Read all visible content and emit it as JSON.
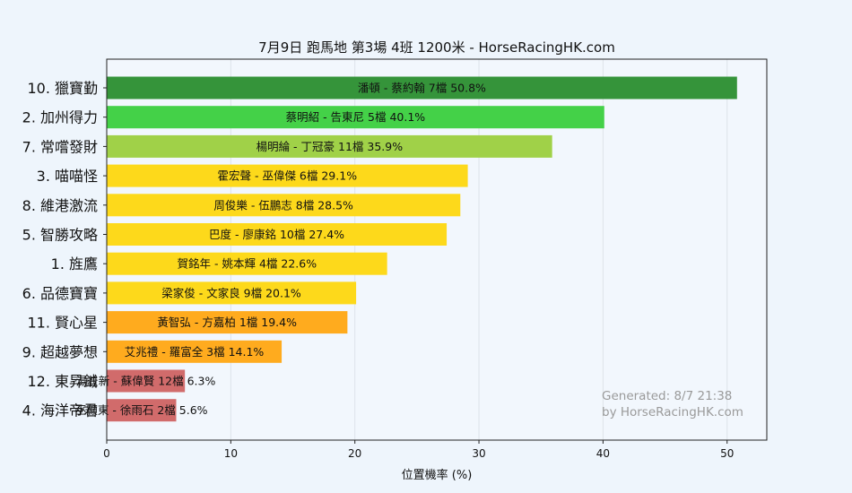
{
  "chart_data": {
    "type": "bar",
    "orientation": "horizontal",
    "title": "7月9日  跑馬地  第3場  4班  1200米 - HorseRacingHK.com",
    "xlabel": "位置機率 (%)",
    "ylabel": "",
    "xlim": [
      0,
      53.2
    ],
    "xticks": [
      0,
      10,
      20,
      30,
      40,
      50
    ],
    "grid": "vertical",
    "categories": [
      "10. 獵寶勤",
      "2. 加州得力",
      "7. 常嚐發財",
      "3. 喵喵怪",
      "8. 維港激流",
      "5. 智勝攻略",
      "1. 旌鷹",
      "6. 品德寶寶",
      "11. 賢心星",
      "9. 超越夢想",
      "12. 東昇鉞",
      "4. 海洋帝君"
    ],
    "values": [
      50.8,
      40.1,
      35.9,
      29.1,
      28.5,
      27.4,
      22.6,
      20.1,
      19.4,
      14.1,
      6.3,
      5.6
    ],
    "bar_labels": [
      "潘頓 - 蔡約翰 7檔  50.8%",
      "蔡明紹 - 告東尼 5檔  40.1%",
      "楊明綸 - 丁冠豪 11檔  35.9%",
      "霍宏聲 - 巫偉傑 6檔  29.1%",
      "周俊樂 - 伍鵬志 8檔  28.5%",
      "巴度 - 廖康銘 10檔  27.4%",
      "賀銘年 - 姚本輝 4檔  22.6%",
      "梁家俊 - 文家良 9檔  20.1%",
      "黃智弘 - 方嘉柏 1檔  19.4%",
      "艾兆禮 - 羅富全 3檔  14.1%",
      "湯普新 - 蘇偉賢 12檔  6.3%",
      "巫顯東 - 徐雨石 2檔  5.6%"
    ],
    "colors": [
      "#35943a",
      "#44d148",
      "#a0d148",
      "#fdd91b",
      "#fdd91b",
      "#fdd91b",
      "#fdd91b",
      "#fdd91b",
      "#ffab1e",
      "#ffab1e",
      "#d16b6b",
      "#d16b6b"
    ],
    "annotation": [
      "Generated: 8/7 21:38",
      "by HorseRacingHK.com"
    ]
  }
}
